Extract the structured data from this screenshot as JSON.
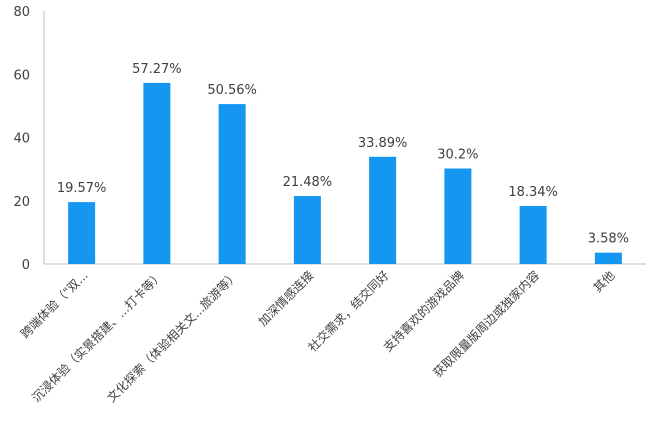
{
  "chart_data": {
    "type": "bar",
    "categories": [
      "跨端体验（\"双...",
      "沉浸体验（实景搭建、...打卡等）",
      "文化探索（体验相关文...旅游等）",
      "加深情感连接",
      "社交需求，结交同好",
      "支持喜欢的游戏品牌",
      "获取限量版周边或独家内容",
      "其他"
    ],
    "values": [
      19.57,
      57.27,
      50.56,
      21.48,
      33.89,
      30.2,
      18.34,
      3.58
    ],
    "value_labels": [
      "19.57%",
      "57.27%",
      "50.56%",
      "21.48%",
      "33.89%",
      "30.2%",
      "18.34%",
      "3.58%"
    ],
    "yticks": [
      "0",
      "20",
      "40",
      "60",
      "80"
    ],
    "ylim": [
      0,
      80
    ],
    "grid": false,
    "bar_color": "#1596f0",
    "axis_color": "#bfbfbf",
    "text_color": "#404040"
  }
}
